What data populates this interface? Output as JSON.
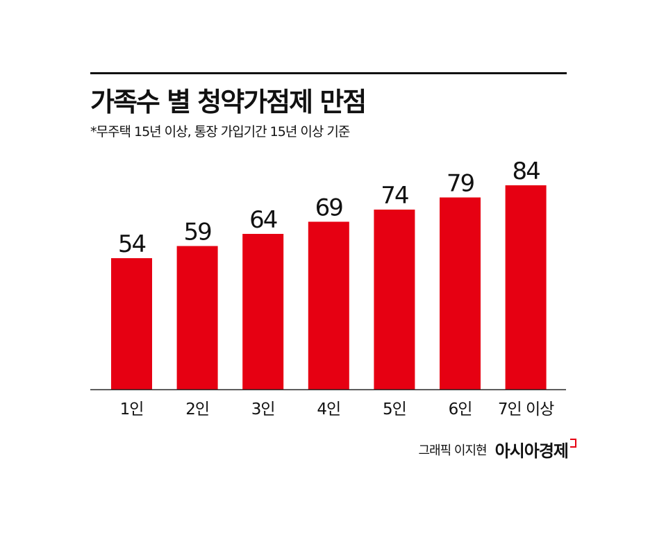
{
  "chart_data": {
    "type": "bar",
    "title": "가족수 별 청약가점제 만점",
    "subtitle": "*무주택 15년 이상, 통장 가입기간 15년 이상 기준",
    "categories": [
      "1인",
      "2인",
      "3인",
      "4인",
      "5인",
      "6인",
      "7인 이상"
    ],
    "values": [
      54,
      59,
      64,
      69,
      74,
      79,
      84
    ],
    "ylim": [
      0,
      90
    ],
    "grid": false,
    "bar_color": "#e60012",
    "xlabel": "",
    "ylabel": ""
  },
  "credit": {
    "author": "그래픽 이지현",
    "brand": "아시아경제"
  }
}
